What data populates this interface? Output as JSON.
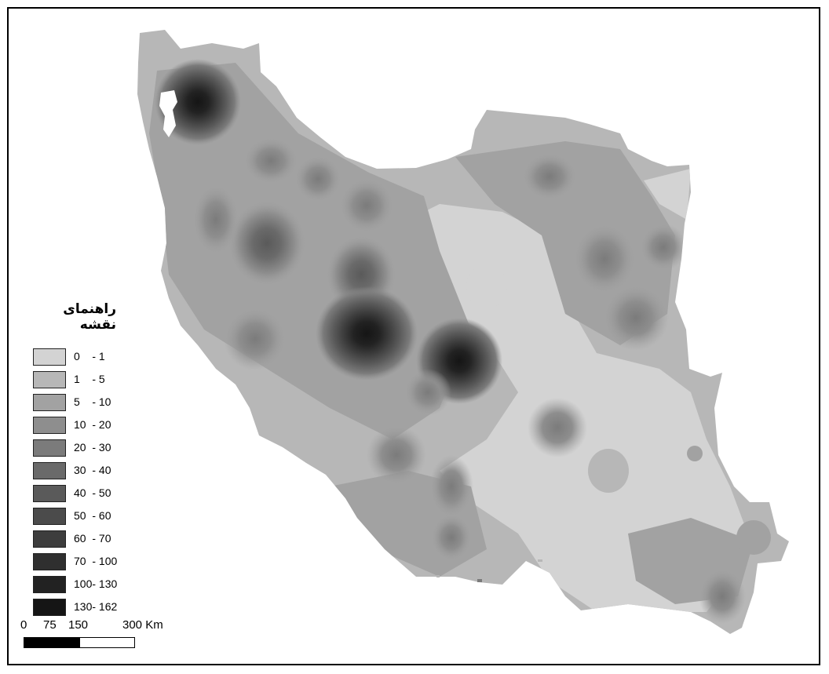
{
  "legend": {
    "title": "راهنمای نقشه",
    "classes": [
      {
        "label": "0    - 1",
        "color": "#d3d3d3"
      },
      {
        "label": "1    - 5",
        "color": "#b7b7b7"
      },
      {
        "label": "5    - 10",
        "color": "#a2a2a2"
      },
      {
        "label": "10  - 20",
        "color": "#8e8e8e"
      },
      {
        "label": "20  - 30",
        "color": "#7b7b7b"
      },
      {
        "label": "30  - 40",
        "color": "#6a6a6a"
      },
      {
        "label": "40  - 50",
        "color": "#5a5a5a"
      },
      {
        "label": "50  - 60",
        "color": "#4b4b4b"
      },
      {
        "label": "60  - 70",
        "color": "#3d3d3d"
      },
      {
        "label": "70  - 100",
        "color": "#2f2f2f"
      },
      {
        "label": "100- 130",
        "color": "#222222"
      },
      {
        "label": "130- 162",
        "color": "#151515"
      }
    ]
  },
  "scale_bar": {
    "ticks": [
      "0",
      "75",
      "150",
      "300 Km"
    ]
  }
}
